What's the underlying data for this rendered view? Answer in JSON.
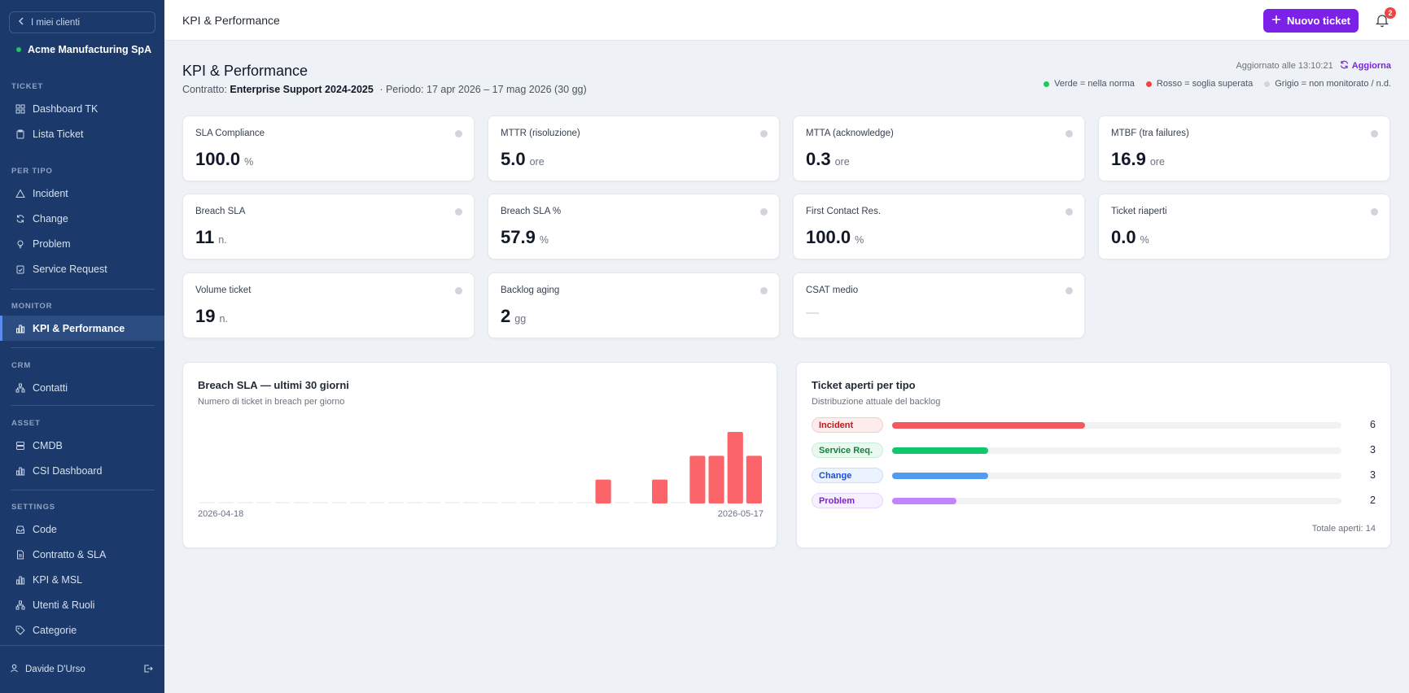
{
  "sidebar": {
    "back_label": "I miei clienti",
    "client_name": "Acme Manufacturing SpA",
    "sections": [
      {
        "label": "TICKET",
        "items": [
          {
            "label": "Dashboard TK",
            "icon": "grid-icon"
          },
          {
            "label": "Lista Ticket",
            "icon": "clipboard-icon"
          }
        ]
      },
      {
        "label": "PER TIPO",
        "items": [
          {
            "label": "Incident",
            "icon": "alert-triangle-icon"
          },
          {
            "label": "Change",
            "icon": "refresh-icon"
          },
          {
            "label": "Problem",
            "icon": "bulb-icon"
          },
          {
            "label": "Service Request",
            "icon": "clipboard-check-icon"
          }
        ]
      },
      {
        "label": "MONITOR",
        "items": [
          {
            "label": "KPI & Performance",
            "icon": "bar-chart-icon",
            "active": true
          }
        ]
      },
      {
        "label": "CRM",
        "items": [
          {
            "label": "Contatti",
            "icon": "network-icon"
          }
        ]
      },
      {
        "label": "ASSET",
        "items": [
          {
            "label": "CMDB",
            "icon": "server-icon"
          },
          {
            "label": "CSI Dashboard",
            "icon": "bar-chart-icon"
          }
        ]
      },
      {
        "label": "SETTINGS",
        "items": [
          {
            "label": "Code",
            "icon": "inbox-icon"
          },
          {
            "label": "Contratto & SLA",
            "icon": "document-icon"
          },
          {
            "label": "KPI & MSL",
            "icon": "bar-chart-icon"
          },
          {
            "label": "Utenti & Ruoli",
            "icon": "network-icon"
          },
          {
            "label": "Categorie",
            "icon": "tag-icon"
          }
        ]
      }
    ],
    "user_name": "Davide D'Urso"
  },
  "topbar": {
    "title": "KPI & Performance",
    "new_ticket_label": "Nuovo ticket",
    "notifications_count": "2"
  },
  "header": {
    "title": "KPI & Performance",
    "contract_prefix": "Contratto:",
    "contract_name": "Enterprise Support 2024-2025",
    "period": "·  Periodo: 17 apr 2026 – 17 mag 2026 (30 gg)",
    "updated": "Aggiornato alle 13:10:21",
    "refresh_label": "Aggiorna",
    "legend": [
      {
        "label": "Verde = nella norma",
        "color": "#22c55e"
      },
      {
        "label": "Rosso = soglia superata",
        "color": "#ef4444"
      },
      {
        "label": "Grigio = non monitorato / n.d.",
        "color": "#d1d5db"
      }
    ]
  },
  "kpis": [
    {
      "label": "SLA Compliance",
      "value": "100.0",
      "unit": "%"
    },
    {
      "label": "MTTR (risoluzione)",
      "value": "5.0",
      "unit": "ore"
    },
    {
      "label": "MTTA (acknowledge)",
      "value": "0.3",
      "unit": "ore"
    },
    {
      "label": "MTBF (tra failures)",
      "value": "16.9",
      "unit": "ore"
    },
    {
      "label": "Breach SLA",
      "value": "11",
      "unit": "n."
    },
    {
      "label": "Breach SLA %",
      "value": "57.9",
      "unit": "%"
    },
    {
      "label": "First Contact Res.",
      "value": "100.0",
      "unit": "%"
    },
    {
      "label": "Ticket riaperti",
      "value": "0.0",
      "unit": "%"
    },
    {
      "label": "Volume ticket",
      "value": "19",
      "unit": "n."
    },
    {
      "label": "Backlog aging",
      "value": "2",
      "unit": "gg"
    },
    {
      "label": "CSAT medio",
      "value": "—",
      "unit": ""
    }
  ],
  "breach_chart": {
    "title": "Breach SLA — ultimi 30 giorni",
    "subtitle": "Numero di ticket in breach per giorno",
    "start_label": "2026-04-18",
    "end_label": "2026-05-17",
    "bar_color": "#fb6468"
  },
  "chart_data": {
    "type": "bar",
    "x": [
      "2026-04-18",
      "2026-04-19",
      "2026-04-20",
      "2026-04-21",
      "2026-04-22",
      "2026-04-23",
      "2026-04-24",
      "2026-04-25",
      "2026-04-26",
      "2026-04-27",
      "2026-04-28",
      "2026-04-29",
      "2026-04-30",
      "2026-05-01",
      "2026-05-02",
      "2026-05-03",
      "2026-05-04",
      "2026-05-05",
      "2026-05-06",
      "2026-05-07",
      "2026-05-08",
      "2026-05-09",
      "2026-05-10",
      "2026-05-11",
      "2026-05-12",
      "2026-05-13",
      "2026-05-14",
      "2026-05-15",
      "2026-05-16",
      "2026-05-17"
    ],
    "values": [
      0,
      0,
      0,
      0,
      0,
      0,
      0,
      0,
      0,
      0,
      0,
      0,
      0,
      0,
      0,
      0,
      0,
      0,
      0,
      0,
      0,
      1,
      0,
      0,
      1,
      0,
      2,
      2,
      3,
      2
    ],
    "title": "Breach SLA — ultimi 30 giorni",
    "xlabel": "",
    "ylabel": "",
    "ylim": [
      0,
      3
    ]
  },
  "open_tickets": {
    "title": "Ticket aperti per tipo",
    "subtitle": "Distribuzione attuale del backlog",
    "max": 14,
    "rows": [
      {
        "label": "Incident",
        "count": 6,
        "color": "#f4595f",
        "pill_bg": "#fdecec",
        "pill_fg": "#b91c1c",
        "pill_border": "#f8caca"
      },
      {
        "label": "Service Req.",
        "count": 3,
        "color": "#10c76a",
        "pill_bg": "#e9f9ef",
        "pill_fg": "#15803d",
        "pill_border": "#c6eed6"
      },
      {
        "label": "Change",
        "count": 3,
        "color": "#4f9cf0",
        "pill_bg": "#ebf3fe",
        "pill_fg": "#1d4ed8",
        "pill_border": "#c9defb"
      },
      {
        "label": "Problem",
        "count": 2,
        "color": "#c084fc",
        "pill_bg": "#f6effe",
        "pill_fg": "#7e22ce",
        "pill_border": "#e7d5fb"
      }
    ],
    "total": "Totale aperti: 14"
  }
}
